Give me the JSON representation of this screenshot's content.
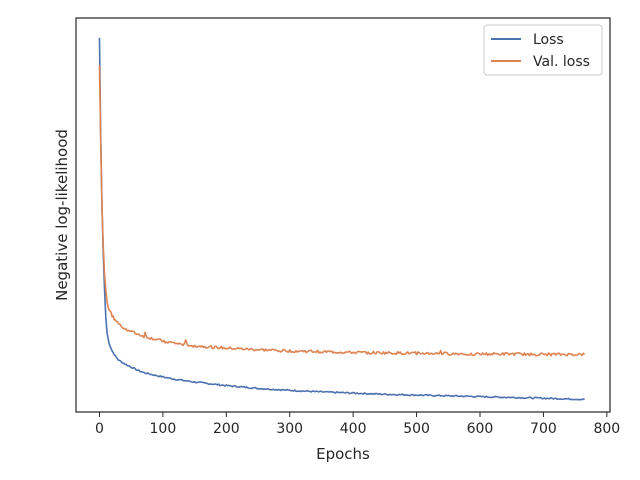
{
  "chart_data": {
    "type": "line",
    "title": "",
    "xlabel": "Epochs",
    "ylabel": "Negative log-likelihood",
    "xlim": [
      -37,
      805
    ],
    "ylim": [
      0,
      100
    ],
    "y_ticks_shown": false,
    "x_ticks": [
      0,
      100,
      200,
      300,
      400,
      500,
      600,
      700,
      800
    ],
    "x_tick_labels": [
      "0",
      "100",
      "200",
      "300",
      "400",
      "500",
      "600",
      "700",
      "800"
    ],
    "grid": false,
    "legend_position": "top-right",
    "series": [
      {
        "name": "Loss",
        "color": "#4c72b0",
        "x": [
          0,
          2,
          4,
          6,
          8,
          10,
          12,
          15,
          20,
          25,
          30,
          40,
          50,
          60,
          70,
          80,
          100,
          120,
          150,
          200,
          250,
          300,
          350,
          400,
          450,
          500,
          550,
          600,
          650,
          700,
          765
        ],
        "y": [
          95,
          70,
          52,
          40,
          31,
          24,
          20,
          17.5,
          15.5,
          14.2,
          13.2,
          12.2,
          11.4,
          10.6,
          10.0,
          9.6,
          8.9,
          8.3,
          7.6,
          6.7,
          6.0,
          5.5,
          5.1,
          4.8,
          4.5,
          4.3,
          4.1,
          3.9,
          3.7,
          3.5,
          3.2
        ]
      },
      {
        "name": "Val. loss",
        "color": "#dd8452",
        "x": [
          0,
          2,
          4,
          6,
          8,
          10,
          12,
          15,
          20,
          25,
          30,
          40,
          50,
          60,
          70,
          80,
          100,
          120,
          150,
          200,
          250,
          300,
          350,
          400,
          450,
          500,
          550,
          600,
          650,
          700,
          765
        ],
        "y": [
          88,
          68,
          52,
          42,
          35,
          31,
          28,
          26,
          24.5,
          23.3,
          22.4,
          21.2,
          20.4,
          19.8,
          19.2,
          18.8,
          18.0,
          17.4,
          16.8,
          16.2,
          15.8,
          15.5,
          15.3,
          15.1,
          15.0,
          14.9,
          14.8,
          14.7,
          14.7,
          14.6,
          14.6
        ]
      }
    ]
  }
}
